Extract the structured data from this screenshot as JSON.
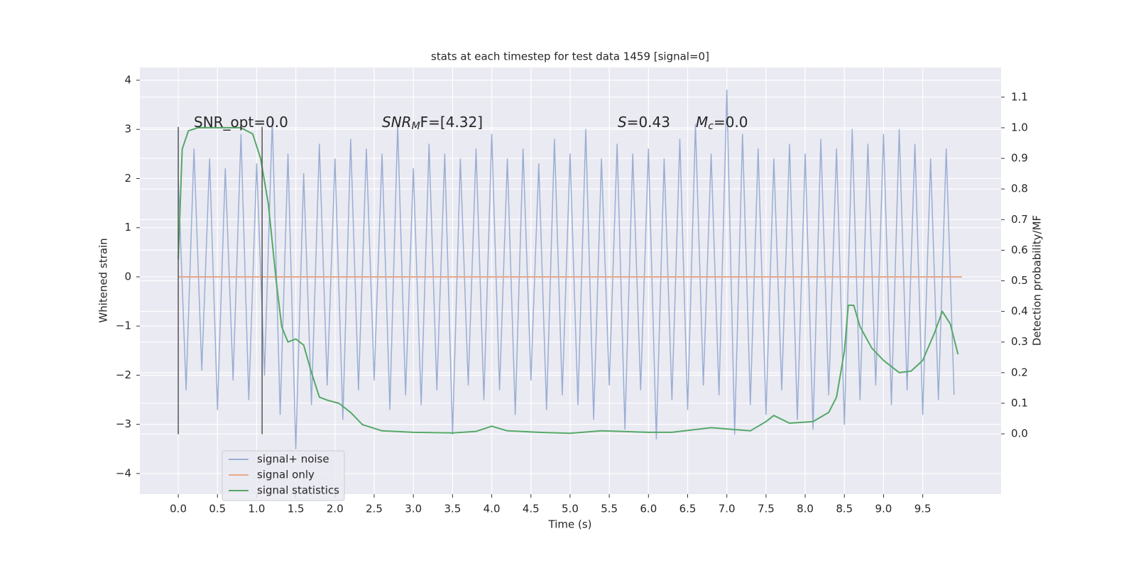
{
  "chart_data": {
    "type": "line",
    "title": "stats at each timestep for test data 1459 [signal=0]",
    "xlabel": "Time (s)",
    "ylabel": "Whitened strain",
    "y2label": "Detection probability/MF",
    "xlim": [
      -0.49,
      10.5
    ],
    "ylim": [
      -4.42,
      4.26
    ],
    "y2lim": [
      -0.197,
      1.197
    ],
    "xticks": [
      {
        "value": 0,
        "label": "0.0"
      },
      0.5,
      {
        "value": 1,
        "label": "1.0"
      },
      1.5,
      {
        "value": 2,
        "label": "2.0"
      },
      2.5,
      {
        "value": 3,
        "label": "3.0"
      },
      3.5,
      {
        "value": 4,
        "label": "4.0"
      },
      4.5,
      {
        "value": 5,
        "label": "5.0"
      },
      5.5,
      {
        "value": 6,
        "label": "6.0"
      },
      6.5,
      {
        "value": 7,
        "label": "7.0"
      },
      7.5,
      {
        "value": 8,
        "label": "8.0"
      },
      8.5,
      {
        "value": 9,
        "label": "9.0"
      },
      9.5
    ],
    "yticks": [
      {
        "value": -4,
        "label": "−4"
      },
      {
        "value": -3,
        "label": "−3"
      },
      {
        "value": -2,
        "label": "−2"
      },
      {
        "value": -1,
        "label": "−1"
      },
      0,
      1,
      2,
      3,
      4
    ],
    "y2ticks": [
      {
        "value": 0,
        "label": "0.0"
      },
      0.1,
      0.2,
      0.3,
      0.4,
      0.5,
      0.6,
      0.7,
      0.8,
      0.9,
      {
        "value": 1,
        "label": "1.0"
      },
      1.1
    ],
    "grid": true,
    "legend": "lower left",
    "annotations": [
      {
        "text": "SNR_opt=0.0"
      },
      {
        "main": "SNR",
        "sub": "M",
        "rest": "F=[4.32]"
      },
      {
        "main": "S",
        "rest": "=0.43"
      },
      {
        "main": "M",
        "sub": "c",
        "rest": "=0.0"
      }
    ],
    "vlines": {
      "x": [
        0,
        1.07
      ],
      "ymin": -3.2,
      "ymax": 3.05,
      "color": "#555555"
    },
    "series": [
      {
        "name": "signal+ noise",
        "color": "#9aaed3",
        "x": [
          0.0,
          0.1,
          0.2,
          0.3,
          0.4,
          0.5,
          0.6,
          0.7,
          0.8,
          0.9,
          1.0,
          1.1,
          1.2,
          1.3,
          1.4,
          1.5,
          1.6,
          1.7,
          1.8,
          1.9,
          2.0,
          2.1,
          2.2,
          2.3,
          2.4,
          2.5,
          2.6,
          2.7,
          2.8,
          2.9,
          3.0,
          3.1,
          3.2,
          3.3,
          3.4,
          3.5,
          3.6,
          3.7,
          3.8,
          3.9,
          4.0,
          4.1,
          4.2,
          4.3,
          4.4,
          4.5,
          4.6,
          4.7,
          4.8,
          4.9,
          5.0,
          5.1,
          5.2,
          5.3,
          5.4,
          5.5,
          5.6,
          5.7,
          5.8,
          5.9,
          6.0,
          6.1,
          6.2,
          6.3,
          6.4,
          6.5,
          6.6,
          6.7,
          6.8,
          6.9,
          7.0,
          7.1,
          7.2,
          7.3,
          7.4,
          7.5,
          7.6,
          7.7,
          7.8,
          7.9,
          8.0,
          8.1,
          8.2,
          8.3,
          8.4,
          8.5,
          8.6,
          8.7,
          8.8,
          8.9,
          9.0,
          9.1,
          9.2,
          9.3,
          9.4,
          9.5,
          9.6,
          9.7,
          9.8,
          9.9
        ],
        "values": [
          2.0,
          -2.3,
          2.6,
          -1.9,
          2.4,
          -2.7,
          2.2,
          -2.1,
          2.9,
          -2.5,
          2.3,
          -2.0,
          3.2,
          -2.8,
          2.5,
          -3.5,
          2.1,
          -2.6,
          2.7,
          -2.2,
          2.4,
          -2.9,
          2.8,
          -2.3,
          2.6,
          -2.1,
          2.5,
          -2.7,
          3.1,
          -2.4,
          2.2,
          -2.6,
          2.7,
          -2.3,
          2.5,
          -3.2,
          2.4,
          -2.2,
          2.6,
          -2.5,
          2.9,
          -2.3,
          2.4,
          -2.8,
          2.6,
          -2.1,
          2.3,
          -2.7,
          2.8,
          -2.4,
          2.5,
          -2.6,
          3.0,
          -2.9,
          2.4,
          -2.2,
          2.7,
          -3.1,
          2.5,
          -2.3,
          2.6,
          -3.3,
          2.4,
          -2.5,
          2.8,
          -2.7,
          3.1,
          -2.2,
          2.5,
          -2.4,
          3.8,
          -3.2,
          2.9,
          -2.6,
          2.6,
          -2.8,
          2.4,
          -2.3,
          2.7,
          -2.9,
          2.5,
          -3.1,
          2.8,
          -2.4,
          2.6,
          -3.0,
          3.0,
          -2.5,
          2.7,
          -2.2,
          2.9,
          -2.6,
          3.0,
          -2.3,
          2.7,
          -2.8,
          2.4,
          -2.5,
          2.6,
          -2.4
        ]
      },
      {
        "name": "signal only",
        "color": "#e8a98a",
        "x": [
          0,
          10
        ],
        "values": [
          0,
          0
        ]
      },
      {
        "name": "signal statistics",
        "color": "#55a868",
        "axis": "y2",
        "x": [
          0,
          0.05,
          0.13,
          0.25,
          0.5,
          0.8,
          0.95,
          1.05,
          1.15,
          1.25,
          1.32,
          1.4,
          1.5,
          1.6,
          1.7,
          1.8,
          1.9,
          2.05,
          2.2,
          2.35,
          2.6,
          3.0,
          3.5,
          3.8,
          4.0,
          4.2,
          4.6,
          5.0,
          5.4,
          6.0,
          6.3,
          6.8,
          7.3,
          7.5,
          7.6,
          7.8,
          8.1,
          8.3,
          8.4,
          8.5,
          8.55,
          8.62,
          8.7,
          8.85,
          9.0,
          9.2,
          9.35,
          9.5,
          9.65,
          9.75,
          9.85,
          9.95
        ],
        "values": [
          0.57,
          0.93,
          0.99,
          1.0,
          1.0,
          1.0,
          0.98,
          0.9,
          0.75,
          0.5,
          0.35,
          0.3,
          0.31,
          0.29,
          0.2,
          0.12,
          0.11,
          0.1,
          0.07,
          0.03,
          0.01,
          0.005,
          0.003,
          0.008,
          0.025,
          0.01,
          0.005,
          0.002,
          0.01,
          0.005,
          0.005,
          0.02,
          0.01,
          0.04,
          0.06,
          0.035,
          0.04,
          0.07,
          0.12,
          0.27,
          0.42,
          0.42,
          0.35,
          0.28,
          0.24,
          0.2,
          0.205,
          0.24,
          0.33,
          0.4,
          0.36,
          0.26
        ]
      }
    ]
  }
}
